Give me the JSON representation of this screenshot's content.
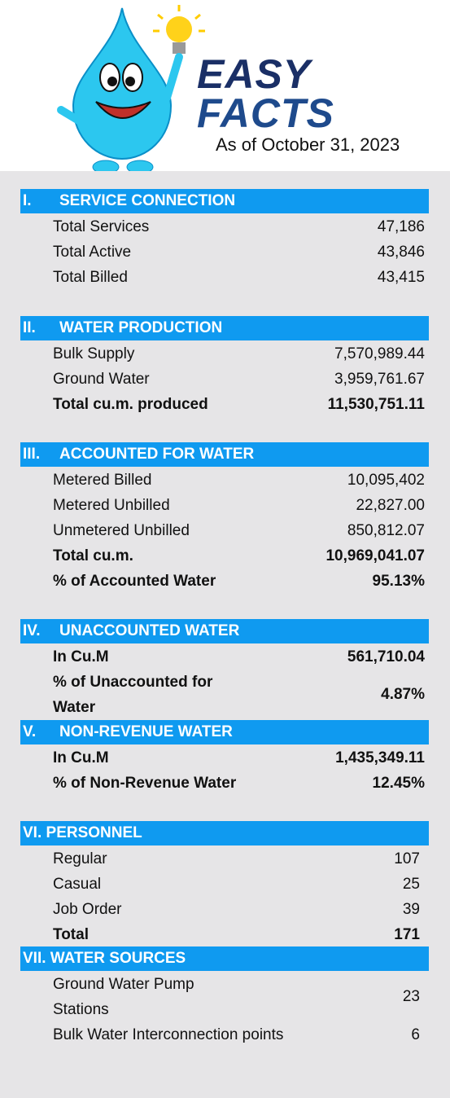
{
  "header": {
    "title_line1": "EASY",
    "title_line2": "FACTS",
    "date": "As of October 31, 2023"
  },
  "sections": [
    {
      "numeral": "I.",
      "title": "SERVICE CONNECTION",
      "rows": [
        {
          "label": "Total Services",
          "value": "47,186",
          "bold": false
        },
        {
          "label": "Total Active",
          "value": "43,846",
          "bold": false
        },
        {
          "label": "Total Billed",
          "value": "43,415",
          "bold": false
        }
      ]
    },
    {
      "numeral": "II.",
      "title": "WATER PRODUCTION",
      "rows": [
        {
          "label": "Bulk Supply",
          "value": "7,570,989.44",
          "bold": false
        },
        {
          "label": "Ground Water",
          "value": "3,959,761.67",
          "bold": false
        },
        {
          "label": "Total cu.m. produced",
          "value": "11,530,751.11",
          "bold": true
        }
      ]
    },
    {
      "numeral": "III.",
      "title": "ACCOUNTED FOR WATER",
      "rows": [
        {
          "label": "Metered Billed",
          "value": "10,095,402",
          "bold": false
        },
        {
          "label": "Metered Unbilled",
          "value": "22,827.00",
          "bold": false
        },
        {
          "label": "Unmetered Unbilled",
          "value": "850,812.07",
          "bold": false
        },
        {
          "label": "Total cu.m.",
          "value": "10,969,041.07",
          "bold": true
        },
        {
          "label": "% of Accounted Water",
          "value": "95.13%",
          "bold": true
        }
      ]
    },
    {
      "numeral": "IV.",
      "title": "UNACCOUNTED WATER",
      "rows": [
        {
          "label": "In Cu.M",
          "value": "561,710.04",
          "bold": true
        },
        {
          "label": "% of Unaccounted for Water",
          "value": "4.87%",
          "bold": true
        }
      ]
    },
    {
      "numeral": "V.",
      "title": "NON-REVENUE WATER",
      "rows": [
        {
          "label": "In Cu.M",
          "value": "1,435,349.11",
          "bold": true
        },
        {
          "label": "% of Non-Revenue Water",
          "value": "12.45%",
          "bold": true
        }
      ]
    },
    {
      "numeral": "VI.",
      "title": "PERSONNEL",
      "rows": [
        {
          "label": "Regular",
          "value": "107",
          "bold": false
        },
        {
          "label": "Casual",
          "value": "25",
          "bold": false
        },
        {
          "label": "Job Order",
          "value": "39",
          "bold": false
        },
        {
          "label": "Total",
          "value": "171",
          "bold": true
        }
      ]
    },
    {
      "numeral": "VII.",
      "title": "WATER SOURCES",
      "rows": [
        {
          "label": "Ground Water Pump Stations",
          "value": "23",
          "bold": false
        },
        {
          "label": "Bulk Water Interconnection points",
          "value": "6",
          "bold": false
        }
      ]
    }
  ]
}
